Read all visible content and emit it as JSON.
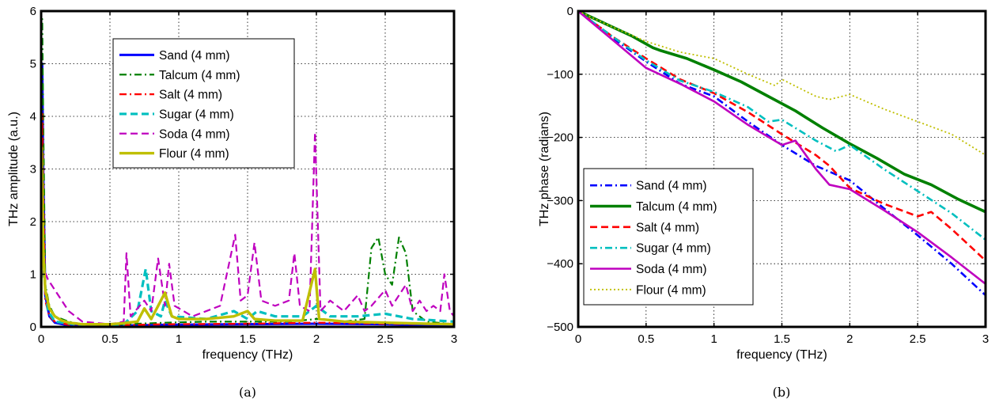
{
  "chart_data": [
    {
      "type": "line",
      "xlabel": "frequency (THz)",
      "ylabel": "THz amplitude (a.u.)",
      "caption": "(a)",
      "xlim": [
        0,
        3
      ],
      "ylim": [
        0,
        6
      ],
      "xticks": [
        0,
        0.5,
        1,
        1.5,
        2,
        2.5,
        3
      ],
      "xtick_labels": [
        "0",
        "0.5",
        "1",
        "1.5",
        "2",
        "2.5",
        "3"
      ],
      "yticks": [
        0,
        1,
        2,
        3,
        4,
        5,
        6
      ],
      "ytick_labels": [
        "0",
        "1",
        "2",
        "3",
        "4",
        "5",
        "6"
      ],
      "grid": true,
      "legend_position": "top-center",
      "series": [
        {
          "name": "Sand (4 mm)",
          "color": "#0000ff",
          "style": "solid",
          "points": [
            [
              0,
              0.5
            ],
            [
              0.008,
              5.0
            ],
            [
              0.015,
              3.0
            ],
            [
              0.03,
              0.6
            ],
            [
              0.06,
              0.2
            ],
            [
              0.1,
              0.08
            ],
            [
              0.2,
              0.03
            ],
            [
              0.5,
              0.02
            ],
            [
              0.9,
              0.04
            ],
            [
              1.5,
              0.05
            ],
            [
              2.0,
              0.06
            ],
            [
              2.5,
              0.05
            ],
            [
              3.0,
              0.03
            ]
          ]
        },
        {
          "name": "Talcum (4 mm)",
          "color": "#008000",
          "style": "dashdot",
          "points": [
            [
              0,
              0.5
            ],
            [
              0.008,
              5.85
            ],
            [
              0.015,
              4.0
            ],
            [
              0.03,
              0.8
            ],
            [
              0.06,
              0.4
            ],
            [
              0.1,
              0.2
            ],
            [
              0.2,
              0.1
            ],
            [
              0.3,
              0.05
            ],
            [
              0.5,
              0.04
            ],
            [
              0.7,
              0.06
            ],
            [
              0.9,
              0.08
            ],
            [
              1.2,
              0.1
            ],
            [
              1.5,
              0.1
            ],
            [
              1.8,
              0.1
            ],
            [
              2.0,
              0.15
            ],
            [
              2.2,
              0.1
            ],
            [
              2.35,
              0.15
            ],
            [
              2.4,
              1.5
            ],
            [
              2.45,
              1.7
            ],
            [
              2.5,
              1.0
            ],
            [
              2.55,
              0.8
            ],
            [
              2.6,
              1.7
            ],
            [
              2.65,
              1.4
            ],
            [
              2.7,
              0.3
            ],
            [
              2.8,
              0.1
            ],
            [
              3.0,
              0.05
            ]
          ]
        },
        {
          "name": "Salt (4 mm)",
          "color": "#ff0000",
          "style": "dashdot",
          "points": [
            [
              0,
              0.5
            ],
            [
              0.008,
              4.05
            ],
            [
              0.015,
              2.5
            ],
            [
              0.03,
              0.5
            ],
            [
              0.06,
              0.2
            ],
            [
              0.1,
              0.1
            ],
            [
              0.2,
              0.04
            ],
            [
              0.5,
              0.03
            ],
            [
              0.9,
              0.05
            ],
            [
              1.5,
              0.06
            ],
            [
              2.0,
              0.08
            ],
            [
              2.5,
              0.06
            ],
            [
              3.0,
              0.05
            ]
          ]
        },
        {
          "name": "Sugar (4 mm)",
          "color": "#00bfbf",
          "style": "dashed",
          "points": [
            [
              0,
              0.4
            ],
            [
              0.008,
              2.0
            ],
            [
              0.02,
              1.0
            ],
            [
              0.05,
              0.3
            ],
            [
              0.1,
              0.1
            ],
            [
              0.3,
              0.03
            ],
            [
              0.6,
              0.05
            ],
            [
              0.7,
              0.3
            ],
            [
              0.76,
              1.1
            ],
            [
              0.8,
              0.3
            ],
            [
              0.87,
              0.2
            ],
            [
              0.9,
              0.5
            ],
            [
              0.95,
              0.2
            ],
            [
              1.2,
              0.15
            ],
            [
              1.4,
              0.3
            ],
            [
              1.5,
              0.15
            ],
            [
              1.57,
              0.3
            ],
            [
              1.7,
              0.2
            ],
            [
              1.9,
              0.2
            ],
            [
              2.0,
              0.4
            ],
            [
              2.1,
              0.2
            ],
            [
              2.3,
              0.2
            ],
            [
              2.5,
              0.25
            ],
            [
              2.7,
              0.15
            ],
            [
              3.0,
              0.1
            ]
          ]
        },
        {
          "name": "Soda (4 mm)",
          "color": "#bf00bf",
          "style": "dashed",
          "points": [
            [
              0,
              0.3
            ],
            [
              0.01,
              1.5
            ],
            [
              0.02,
              1.1
            ],
            [
              0.05,
              0.9
            ],
            [
              0.1,
              0.7
            ],
            [
              0.15,
              0.5
            ],
            [
              0.2,
              0.3
            ],
            [
              0.3,
              0.1
            ],
            [
              0.5,
              0.05
            ],
            [
              0.6,
              0.1
            ],
            [
              0.62,
              1.4
            ],
            [
              0.65,
              0.2
            ],
            [
              0.75,
              0.5
            ],
            [
              0.8,
              0.3
            ],
            [
              0.85,
              1.3
            ],
            [
              0.9,
              0.4
            ],
            [
              0.93,
              1.2
            ],
            [
              0.97,
              0.4
            ],
            [
              1.1,
              0.2
            ],
            [
              1.2,
              0.3
            ],
            [
              1.3,
              0.4
            ],
            [
              1.41,
              1.75
            ],
            [
              1.45,
              0.5
            ],
            [
              1.5,
              0.6
            ],
            [
              1.55,
              1.6
            ],
            [
              1.6,
              0.5
            ],
            [
              1.7,
              0.4
            ],
            [
              1.8,
              0.5
            ],
            [
              1.84,
              1.4
            ],
            [
              1.88,
              0.4
            ],
            [
              1.95,
              0.3
            ],
            [
              1.99,
              3.7
            ],
            [
              2.03,
              0.3
            ],
            [
              2.1,
              0.5
            ],
            [
              2.2,
              0.3
            ],
            [
              2.3,
              0.6
            ],
            [
              2.35,
              0.3
            ],
            [
              2.4,
              0.4
            ],
            [
              2.5,
              0.7
            ],
            [
              2.55,
              0.4
            ],
            [
              2.65,
              0.8
            ],
            [
              2.7,
              0.3
            ],
            [
              2.75,
              0.5
            ],
            [
              2.8,
              0.3
            ],
            [
              2.85,
              0.4
            ],
            [
              2.9,
              0.3
            ],
            [
              2.93,
              1.0
            ],
            [
              2.97,
              0.3
            ],
            [
              3.0,
              0.2
            ]
          ]
        },
        {
          "name": "Flour (4 mm)",
          "color": "#bfbf00",
          "style": "solid",
          "points": [
            [
              0,
              0.3
            ],
            [
              0.005,
              3.4
            ],
            [
              0.015,
              1.5
            ],
            [
              0.03,
              0.7
            ],
            [
              0.06,
              0.35
            ],
            [
              0.1,
              0.2
            ],
            [
              0.15,
              0.12
            ],
            [
              0.2,
              0.08
            ],
            [
              0.3,
              0.05
            ],
            [
              0.5,
              0.05
            ],
            [
              0.6,
              0.07
            ],
            [
              0.7,
              0.1
            ],
            [
              0.75,
              0.35
            ],
            [
              0.8,
              0.15
            ],
            [
              0.85,
              0.4
            ],
            [
              0.9,
              0.65
            ],
            [
              0.95,
              0.2
            ],
            [
              1.0,
              0.15
            ],
            [
              1.2,
              0.15
            ],
            [
              1.4,
              0.2
            ],
            [
              1.5,
              0.3
            ],
            [
              1.55,
              0.15
            ],
            [
              1.7,
              0.12
            ],
            [
              1.9,
              0.12
            ],
            [
              1.99,
              1.1
            ],
            [
              2.02,
              0.15
            ],
            [
              2.2,
              0.1
            ],
            [
              2.5,
              0.08
            ],
            [
              2.8,
              0.06
            ],
            [
              3.0,
              0.05
            ]
          ]
        }
      ]
    },
    {
      "type": "line",
      "xlabel": "frequency (THz)",
      "ylabel": "THz phase (radians)",
      "caption": "(b)",
      "xlim": [
        0,
        3
      ],
      "ylim": [
        -500,
        0
      ],
      "xticks": [
        0,
        0.5,
        1,
        1.5,
        2,
        2.5,
        3
      ],
      "xtick_labels": [
        "0",
        "0.5",
        "1",
        "1.5",
        "2",
        "2.5",
        "3"
      ],
      "yticks": [
        -500,
        -400,
        -300,
        -200,
        -100,
        0
      ],
      "ytick_labels": [
        "−500",
        "−400",
        "−300",
        "−200",
        "−100",
        "0"
      ],
      "grid": true,
      "legend_position": "bottom-left",
      "series": [
        {
          "name": "Sand (4 mm)",
          "color": "#0000ff",
          "style": "dashdot",
          "points": [
            [
              0,
              0
            ],
            [
              0.25,
              -42
            ],
            [
              0.5,
              -80
            ],
            [
              0.75,
              -115
            ],
            [
              1.0,
              -135
            ],
            [
              1.25,
              -175
            ],
            [
              1.5,
              -212
            ],
            [
              1.75,
              -245
            ],
            [
              2.0,
              -268
            ],
            [
              2.25,
              -312
            ],
            [
              2.5,
              -355
            ],
            [
              2.75,
              -400
            ],
            [
              3.0,
              -450
            ]
          ]
        },
        {
          "name": "Talcum (4 mm)",
          "color": "#008000",
          "style": "solid",
          "points": [
            [
              0,
              0
            ],
            [
              0.2,
              -20
            ],
            [
              0.4,
              -40
            ],
            [
              0.55,
              -58
            ],
            [
              0.6,
              -62
            ],
            [
              0.8,
              -75
            ],
            [
              1.0,
              -93
            ],
            [
              1.2,
              -112
            ],
            [
              1.4,
              -135
            ],
            [
              1.6,
              -158
            ],
            [
              1.8,
              -185
            ],
            [
              2.0,
              -210
            ],
            [
              2.2,
              -233
            ],
            [
              2.4,
              -258
            ],
            [
              2.6,
              -275
            ],
            [
              2.8,
              -298
            ],
            [
              3.0,
              -318
            ]
          ]
        },
        {
          "name": "Salt (4 mm)",
          "color": "#ff0000",
          "style": "dashed",
          "points": [
            [
              0,
              0
            ],
            [
              0.25,
              -40
            ],
            [
              0.5,
              -75
            ],
            [
              0.75,
              -108
            ],
            [
              1.0,
              -130
            ],
            [
              1.25,
              -160
            ],
            [
              1.5,
              -195
            ],
            [
              1.75,
              -228
            ],
            [
              1.85,
              -245
            ],
            [
              2.0,
              -280
            ],
            [
              2.25,
              -305
            ],
            [
              2.5,
              -325
            ],
            [
              2.6,
              -318
            ],
            [
              2.75,
              -345
            ],
            [
              3.0,
              -395
            ]
          ]
        },
        {
          "name": "Sugar (4 mm)",
          "color": "#00bfbf",
          "style": "dashdot",
          "points": [
            [
              0,
              0
            ],
            [
              0.25,
              -40
            ],
            [
              0.5,
              -78
            ],
            [
              0.75,
              -110
            ],
            [
              1.0,
              -128
            ],
            [
              1.25,
              -152
            ],
            [
              1.4,
              -175
            ],
            [
              1.5,
              -172
            ],
            [
              1.75,
              -205
            ],
            [
              1.9,
              -222
            ],
            [
              2.0,
              -212
            ],
            [
              2.25,
              -250
            ],
            [
              2.5,
              -285
            ],
            [
              2.75,
              -320
            ],
            [
              3.0,
              -362
            ]
          ]
        },
        {
          "name": "Soda (4 mm)",
          "color": "#bf00bf",
          "style": "solid",
          "points": [
            [
              0,
              0
            ],
            [
              0.25,
              -45
            ],
            [
              0.5,
              -90
            ],
            [
              0.75,
              -115
            ],
            [
              1.0,
              -143
            ],
            [
              1.25,
              -180
            ],
            [
              1.5,
              -212
            ],
            [
              1.6,
              -205
            ],
            [
              1.75,
              -250
            ],
            [
              1.85,
              -275
            ],
            [
              2.0,
              -282
            ],
            [
              2.25,
              -315
            ],
            [
              2.5,
              -350
            ],
            [
              2.75,
              -390
            ],
            [
              3.0,
              -432
            ]
          ]
        },
        {
          "name": "Flour (4 mm)",
          "color": "#bfbf00",
          "style": "dotted",
          "points": [
            [
              0,
              0
            ],
            [
              0.25,
              -25
            ],
            [
              0.5,
              -48
            ],
            [
              0.75,
              -65
            ],
            [
              1.0,
              -75
            ],
            [
              1.25,
              -100
            ],
            [
              1.45,
              -118
            ],
            [
              1.5,
              -108
            ],
            [
              1.75,
              -135
            ],
            [
              1.85,
              -140
            ],
            [
              2.0,
              -132
            ],
            [
              2.25,
              -155
            ],
            [
              2.5,
              -175
            ],
            [
              2.75,
              -195
            ],
            [
              3.0,
              -228
            ]
          ]
        }
      ]
    }
  ]
}
